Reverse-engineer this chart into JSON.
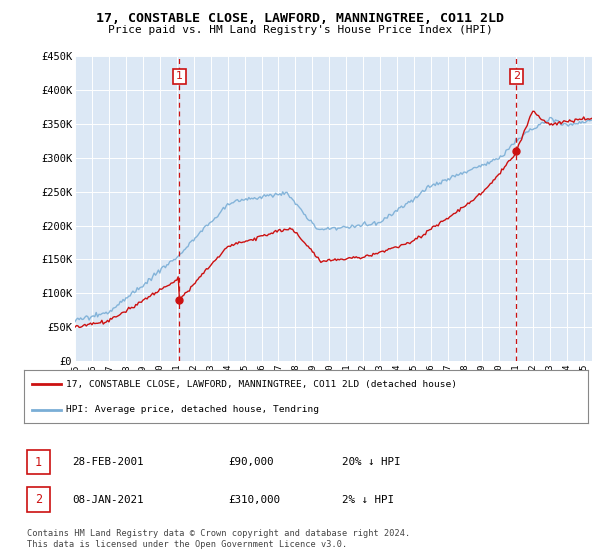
{
  "title": "17, CONSTABLE CLOSE, LAWFORD, MANNINGTREE, CO11 2LD",
  "subtitle": "Price paid vs. HM Land Registry's House Price Index (HPI)",
  "ylabel_ticks": [
    "£0",
    "£50K",
    "£100K",
    "£150K",
    "£200K",
    "£250K",
    "£300K",
    "£350K",
    "£400K",
    "£450K"
  ],
  "ytick_values": [
    0,
    50000,
    100000,
    150000,
    200000,
    250000,
    300000,
    350000,
    400000,
    450000
  ],
  "ylim": [
    0,
    450000
  ],
  "xlim_start": 1995.0,
  "xlim_end": 2025.5,
  "hpi_color": "#7aaed6",
  "property_color": "#cc1111",
  "sale1_date": "28-FEB-2001",
  "sale1_price": 90000,
  "sale1_pct": "20% ↓ HPI",
  "sale1_year": 2001.16,
  "sale2_date": "08-JAN-2021",
  "sale2_price": 310000,
  "sale2_pct": "2% ↓ HPI",
  "sale2_year": 2021.03,
  "legend_property": "17, CONSTABLE CLOSE, LAWFORD, MANNINGTREE, CO11 2LD (detached house)",
  "legend_hpi": "HPI: Average price, detached house, Tendring",
  "footer": "Contains HM Land Registry data © Crown copyright and database right 2024.\nThis data is licensed under the Open Government Licence v3.0.",
  "background_color": "#ffffff",
  "plot_bg_color": "#dce8f5"
}
